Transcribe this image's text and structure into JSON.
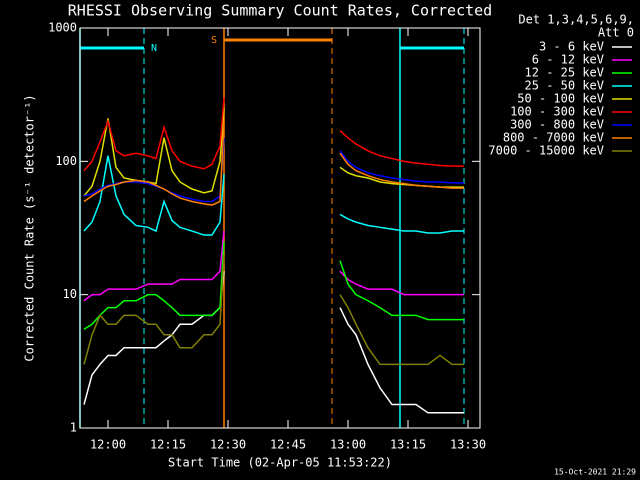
{
  "chart_data": {
    "type": "line",
    "title": "RHESSI Observing Summary Count Rates, Corrected",
    "xlabel": "Start Time (02-Apr-05 11:53:22)",
    "ylabel": "Corrected Count Rate (s⁻¹ detector⁻¹)",
    "legend_title": [
      "Det 1,3,4,5,6,9,",
      "Att 0"
    ],
    "footer": "15-Oct-2021 21:29",
    "log_y": true,
    "legend": "right",
    "background": "#000000",
    "foreground": "#ffffff",
    "xlim": [
      "11:53",
      "13:33"
    ],
    "xticks": [
      "12:00",
      "12:15",
      "12:30",
      "12:45",
      "13:00",
      "13:15",
      "13:30"
    ],
    "ylim": [
      1,
      1000
    ],
    "yticks": [
      1,
      10,
      100,
      1000
    ],
    "markers": [
      {
        "x": "11:53",
        "color": "#00ffff",
        "style": "solid"
      },
      {
        "x": "12:09",
        "color": "#00ffff",
        "style": "dashed"
      },
      {
        "x": "12:29",
        "color": "#ff8000",
        "style": "solid"
      },
      {
        "x": "12:56",
        "color": "#ff8000",
        "style": "dashed"
      },
      {
        "x": "13:13",
        "color": "#00ffff",
        "style": "solid"
      },
      {
        "x": "13:29",
        "color": "#00ffff",
        "style": "dashed"
      }
    ],
    "bars": [
      {
        "start": "11:53",
        "end": "12:09",
        "color": "#00ffff",
        "label": "N",
        "label_at": "end"
      },
      {
        "start": "12:29",
        "end": "12:56",
        "color": "#ff8000",
        "label": "S",
        "label_at": "start"
      },
      {
        "start": "13:13",
        "end": "13:29",
        "color": "#00ffff"
      }
    ],
    "x": [
      "11:54",
      "11:56",
      "11:58",
      "12:00",
      "12:02",
      "12:04",
      "12:07",
      "12:10",
      "12:12",
      "12:14",
      "12:16",
      "12:18",
      "12:21",
      "12:24",
      "12:26",
      "12:28",
      "12:29",
      "12:43",
      "12:58",
      "13:00",
      "13:02",
      "13:05",
      "13:08",
      "13:11",
      "13:14",
      "13:17",
      "13:20",
      "13:23",
      "13:26",
      "13:29"
    ],
    "series": [
      {
        "name": "3 - 6 keV",
        "color": "#ffffff",
        "values": [
          1.5,
          2.5,
          3,
          3.5,
          3.5,
          4,
          4,
          4,
          4,
          4.5,
          5,
          6,
          6,
          7,
          7,
          8,
          15,
          null,
          8,
          6,
          5,
          3,
          2,
          1.5,
          1.5,
          1.5,
          1.3,
          1.3,
          1.3,
          1.3
        ]
      },
      {
        "name": "6 - 12 keV",
        "color": "#ff00ff",
        "values": [
          9,
          10,
          10,
          11,
          11,
          11,
          11,
          12,
          12,
          12,
          12,
          13,
          13,
          13,
          13,
          15,
          30,
          null,
          15,
          13,
          12,
          11,
          11,
          11,
          10,
          10,
          10,
          10,
          10,
          10
        ]
      },
      {
        "name": "12 - 25 keV",
        "color": "#00ff00",
        "values": [
          5.5,
          6,
          7,
          8,
          8,
          9,
          9,
          10,
          10,
          9,
          8,
          7,
          7,
          7,
          7,
          8,
          25,
          null,
          18,
          12,
          10,
          9,
          8,
          7,
          7,
          7,
          6.5,
          6.5,
          6.5,
          6.5
        ]
      },
      {
        "name": "25 - 50 keV",
        "color": "#00ffff",
        "values": [
          30,
          35,
          50,
          110,
          55,
          40,
          33,
          32,
          30,
          50,
          36,
          32,
          30,
          28,
          28,
          35,
          80,
          null,
          40,
          37,
          35,
          33,
          32,
          31,
          30,
          30,
          29,
          29,
          30,
          30
        ]
      },
      {
        "name": "50 - 100 keV",
        "color": "#e0e000",
        "values": [
          55,
          65,
          100,
          210,
          90,
          75,
          72,
          70,
          68,
          150,
          85,
          70,
          62,
          58,
          60,
          100,
          250,
          null,
          90,
          82,
          78,
          75,
          70,
          68,
          67,
          66,
          65,
          64,
          64,
          64
        ]
      },
      {
        "name": "100 - 300 keV",
        "color": "#ff0000",
        "values": [
          85,
          100,
          140,
          200,
          120,
          110,
          115,
          110,
          105,
          180,
          120,
          100,
          92,
          88,
          95,
          130,
          300,
          null,
          170,
          150,
          135,
          120,
          110,
          105,
          100,
          97,
          95,
          93,
          92,
          92
        ]
      },
      {
        "name": "300 - 800 keV",
        "color": "#0000ff",
        "values": [
          55,
          57,
          62,
          66,
          68,
          70,
          70,
          68,
          65,
          62,
          58,
          55,
          52,
          50,
          50,
          55,
          150,
          null,
          120,
          100,
          90,
          82,
          78,
          75,
          73,
          71,
          70,
          70,
          69,
          69
        ]
      },
      {
        "name": "800 - 7000 keV",
        "color": "#ff8000",
        "values": [
          50,
          55,
          60,
          65,
          67,
          70,
          72,
          70,
          66,
          62,
          57,
          53,
          50,
          48,
          47,
          50,
          200,
          null,
          115,
          95,
          85,
          78,
          73,
          70,
          68,
          66,
          65,
          64,
          63,
          63
        ]
      },
      {
        "name": "7000 - 15000 keV",
        "color": "#808000",
        "values": [
          3,
          5,
          7,
          6,
          6,
          7,
          7,
          6,
          6,
          5,
          5,
          4,
          4,
          5,
          5,
          6,
          20,
          null,
          10,
          8,
          6,
          4,
          3,
          3,
          3,
          3,
          3,
          3.5,
          3,
          3
        ]
      }
    ]
  }
}
